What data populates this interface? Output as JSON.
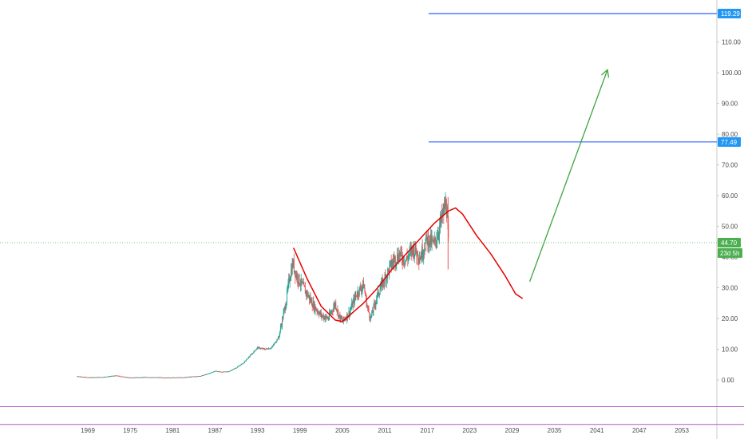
{
  "chart_data": {
    "type": "candlestick",
    "x_ticks": [
      "1969",
      "1975",
      "1981",
      "1987",
      "1993",
      "1999",
      "2005",
      "2011",
      "2017",
      "2023",
      "2029",
      "2035",
      "2041",
      "2047",
      "2053"
    ],
    "y_ticks": [
      "0.00",
      "10.00",
      "20.00",
      "30.00",
      "40.00",
      "50.00",
      "60.00",
      "70.00",
      "80.00",
      "90.00",
      "100.00",
      "110.00",
      "120.00"
    ],
    "ylim": [
      -8,
      122
    ],
    "xlim": [
      1966,
      2058
    ],
    "grid": false,
    "price_series": {
      "points": [
        [
          1967.5,
          1.2
        ],
        [
          1969,
          0.8
        ],
        [
          1971,
          0.9
        ],
        [
          1973,
          1.4
        ],
        [
          1975,
          0.7
        ],
        [
          1977,
          0.9
        ],
        [
          1979,
          0.8
        ],
        [
          1981,
          0.7
        ],
        [
          1983,
          0.9
        ],
        [
          1985,
          1.3
        ],
        [
          1986,
          2.0
        ],
        [
          1987,
          2.9
        ],
        [
          1988,
          2.6
        ],
        [
          1989,
          2.8
        ],
        [
          1990,
          4.0
        ],
        [
          1991,
          5.5
        ],
        [
          1992,
          8.0
        ],
        [
          1993,
          10.5
        ],
        [
          1994,
          10.0
        ],
        [
          1995,
          10.5
        ],
        [
          1996,
          14.0
        ],
        [
          1997,
          25.0
        ],
        [
          1997.5,
          33.0
        ],
        [
          1998,
          38.0
        ],
        [
          1998.5,
          34.0
        ],
        [
          1999,
          32.0
        ],
        [
          2000,
          28.0
        ],
        [
          2001,
          24.0
        ],
        [
          2002,
          21.0
        ],
        [
          2003,
          20.0
        ],
        [
          2004,
          25.0
        ],
        [
          2004.5,
          21.0
        ],
        [
          2005,
          19.0
        ],
        [
          2006,
          22.0
        ],
        [
          2007,
          28.0
        ],
        [
          2008,
          31.0
        ],
        [
          2008.5,
          24.0
        ],
        [
          2009,
          20.0
        ],
        [
          2010,
          28.0
        ],
        [
          2011,
          33.0
        ],
        [
          2012,
          38.0
        ],
        [
          2013,
          41.0
        ],
        [
          2014,
          39.0
        ],
        [
          2015,
          43.0
        ],
        [
          2016,
          40.0
        ],
        [
          2017,
          46.0
        ],
        [
          2018,
          44.0
        ],
        [
          2019,
          52.0
        ],
        [
          2019.7,
          58.0
        ],
        [
          2020,
          44.7
        ]
      ],
      "last_value": 44.7
    },
    "annotations": {
      "horizontal_lines": [
        {
          "value": 119.29,
          "label": "119.29",
          "x_start": 2017.2
        },
        {
          "value": 77.49,
          "label": "77.49",
          "x_start": 2017.2
        }
      ],
      "current_price_line": {
        "value": 44.7,
        "label": "44.70",
        "countdown": "23d 5h"
      },
      "purple_lines": [
        -8.7,
        -14.5
      ],
      "red_curve": [
        [
          1998.1,
          43.0
        ],
        [
          2000,
          33.0
        ],
        [
          2002,
          24.0
        ],
        [
          2004,
          19.5
        ],
        [
          2005,
          19.0
        ],
        [
          2006,
          21.0
        ],
        [
          2008,
          25.0
        ],
        [
          2010,
          30.0
        ],
        [
          2012,
          36.0
        ],
        [
          2014,
          41.0
        ],
        [
          2016,
          46.0
        ],
        [
          2018,
          51.0
        ],
        [
          2020,
          55.0
        ],
        [
          2021,
          56.0
        ],
        [
          2022,
          54.0
        ],
        [
          2024,
          47.0
        ],
        [
          2026,
          41.0
        ],
        [
          2028,
          34.0
        ],
        [
          2029.5,
          28.0
        ],
        [
          2030.5,
          26.5
        ]
      ],
      "green_arrow": {
        "from": [
          2031.5,
          32.0
        ],
        "to": [
          2042.5,
          101.0
        ]
      }
    },
    "colors": {
      "up_candle": "#26a69a",
      "down_candle": "#ef5350",
      "horizontal_line": "#2962ff",
      "current_price": "#4caf50",
      "red_curve": "#e60000",
      "green_arrow": "#3da63d",
      "purple_line": "#b05cc8",
      "badge_blue": "#2196f3",
      "badge_green": "#4caf50"
    }
  }
}
